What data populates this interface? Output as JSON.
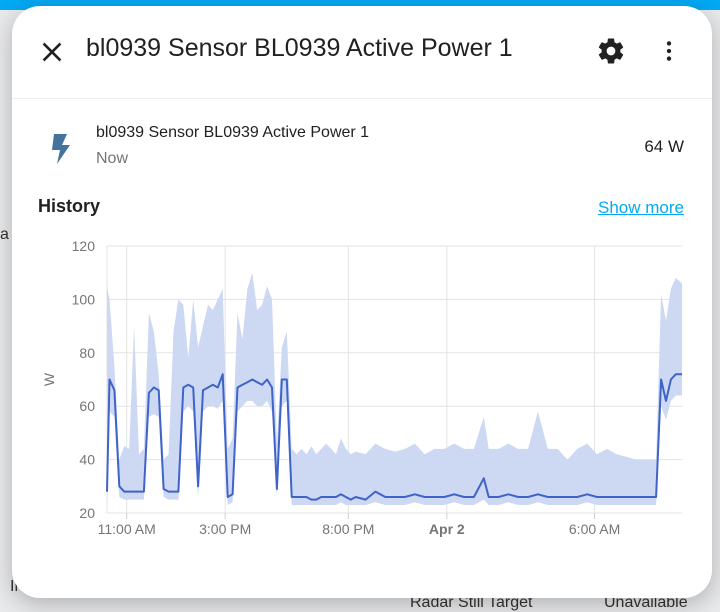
{
  "background": {
    "fragments": [
      "a",
      "Ir",
      "Radar Still Target",
      "Unavailable"
    ],
    "accent_color": "#03a9f4"
  },
  "dialog": {
    "title": "bl0939 Sensor BL0939 Active Power 1",
    "icons": {
      "close": "close-icon",
      "settings": "gear-icon",
      "more": "more-vert-icon"
    }
  },
  "entity": {
    "name": "bl0939 Sensor BL0939 Active Power 1",
    "time": "Now",
    "value": "64 W",
    "icon": "flash-icon",
    "icon_color": "#44739e"
  },
  "history": {
    "title": "History",
    "show_more": "Show more",
    "link_color": "#03a9f4"
  },
  "chart_data": {
    "type": "area",
    "ylabel": "W",
    "ylim": [
      20,
      120
    ],
    "yticks": [
      20,
      40,
      60,
      80,
      100,
      120
    ],
    "xlim": [
      "2023-04-01T10:12",
      "2023-04-02T09:33"
    ],
    "xticks": [
      {
        "label": "11:00 AM",
        "t": "2023-04-01T11:00"
      },
      {
        "label": "3:00 PM",
        "t": "2023-04-01T15:00"
      },
      {
        "label": "8:00 PM",
        "t": "2023-04-01T20:00"
      },
      {
        "label": "Apr 2",
        "t": "2023-04-02T00:00",
        "bold": true
      },
      {
        "label": "6:00 AM",
        "t": "2023-04-02T06:00"
      }
    ],
    "grid": true,
    "line_color": "#3f63c7",
    "band_color": "#cdd8f3",
    "series": [
      {
        "x": [
          "2023-04-01T10:12",
          "2023-04-01T10:18",
          "2023-04-01T10:30",
          "2023-04-01T10:42",
          "2023-04-01T10:54",
          "2023-04-01T11:06",
          "2023-04-01T11:18",
          "2023-04-01T11:30",
          "2023-04-01T11:42",
          "2023-04-01T11:54",
          "2023-04-01T12:06",
          "2023-04-01T12:18",
          "2023-04-01T12:30",
          "2023-04-01T12:42",
          "2023-04-01T12:54",
          "2023-04-01T13:06",
          "2023-04-01T13:18",
          "2023-04-01T13:30",
          "2023-04-01T13:42",
          "2023-04-01T13:54",
          "2023-04-01T14:06",
          "2023-04-01T14:18",
          "2023-04-01T14:30",
          "2023-04-01T14:42",
          "2023-04-01T14:54",
          "2023-04-01T15:06",
          "2023-04-01T15:18",
          "2023-04-01T15:30",
          "2023-04-01T15:42",
          "2023-04-01T15:54",
          "2023-04-01T16:06",
          "2023-04-01T16:18",
          "2023-04-01T16:30",
          "2023-04-01T16:42",
          "2023-04-01T16:54",
          "2023-04-01T17:06",
          "2023-04-01T17:18",
          "2023-04-01T17:30",
          "2023-04-01T17:42",
          "2023-04-01T17:54",
          "2023-04-01T18:06",
          "2023-04-01T18:18",
          "2023-04-01T18:30",
          "2023-04-01T18:42",
          "2023-04-01T18:54",
          "2023-04-01T19:06",
          "2023-04-01T19:18",
          "2023-04-01T19:30",
          "2023-04-01T19:42",
          "2023-04-01T19:54",
          "2023-04-01T20:06",
          "2023-04-01T20:18",
          "2023-04-01T20:42",
          "2023-04-01T21:06",
          "2023-04-01T21:30",
          "2023-04-01T21:54",
          "2023-04-01T22:18",
          "2023-04-01T22:42",
          "2023-04-01T23:06",
          "2023-04-01T23:30",
          "2023-04-01T23:54",
          "2023-04-02T00:18",
          "2023-04-02T00:42",
          "2023-04-02T01:06",
          "2023-04-02T01:30",
          "2023-04-02T01:42",
          "2023-04-02T02:06",
          "2023-04-02T02:30",
          "2023-04-02T02:54",
          "2023-04-02T03:18",
          "2023-04-02T03:42",
          "2023-04-02T04:06",
          "2023-04-02T04:30",
          "2023-04-02T04:54",
          "2023-04-02T05:18",
          "2023-04-02T05:42",
          "2023-04-02T06:06",
          "2023-04-02T06:30",
          "2023-04-02T06:54",
          "2023-04-02T07:18",
          "2023-04-02T07:42",
          "2023-04-02T08:06",
          "2023-04-02T08:18",
          "2023-04-02T08:30",
          "2023-04-02T08:42",
          "2023-04-02T08:54",
          "2023-04-02T09:06",
          "2023-04-02T09:18",
          "2023-04-02T09:33"
        ],
        "mean": [
          28,
          70,
          66,
          30,
          28,
          28,
          28,
          28,
          28,
          65,
          67,
          66,
          29,
          28,
          28,
          28,
          67,
          68,
          67,
          30,
          66,
          67,
          68,
          67,
          72,
          26,
          27,
          67,
          68,
          69,
          70,
          69,
          68,
          70,
          67,
          29,
          70,
          70,
          26,
          26,
          26,
          26,
          25,
          25,
          26,
          26,
          26,
          26,
          27,
          26,
          25,
          26,
          25,
          28,
          26,
          26,
          26,
          27,
          26,
          26,
          26,
          27,
          26,
          26,
          33,
          26,
          26,
          27,
          26,
          26,
          27,
          26,
          26,
          26,
          26,
          27,
          26,
          26,
          26,
          26,
          26,
          26,
          26,
          26,
          70,
          62,
          70,
          72,
          72
        ],
        "max": [
          105,
          100,
          75,
          40,
          45,
          44,
          90,
          42,
          44,
          95,
          88,
          72,
          40,
          42,
          88,
          100,
          98,
          78,
          100,
          82,
          90,
          98,
          96,
          100,
          104,
          44,
          48,
          95,
          85,
          104,
          110,
          96,
          98,
          105,
          100,
          46,
          82,
          88,
          44,
          42,
          44,
          42,
          45,
          42,
          44,
          46,
          44,
          42,
          48,
          44,
          42,
          43,
          42,
          46,
          44,
          43,
          44,
          46,
          42,
          44,
          44,
          46,
          44,
          44,
          56,
          44,
          44,
          46,
          44,
          44,
          58,
          44,
          44,
          40,
          44,
          46,
          42,
          44,
          42,
          41,
          40,
          40,
          40,
          40,
          102,
          92,
          104,
          108,
          106
        ],
        "min": [
          25,
          58,
          56,
          26,
          25,
          25,
          25,
          25,
          25,
          56,
          57,
          56,
          26,
          25,
          25,
          25,
          58,
          60,
          58,
          26,
          58,
          60,
          60,
          59,
          62,
          23,
          24,
          58,
          60,
          62,
          62,
          60,
          60,
          62,
          58,
          26,
          60,
          62,
          23,
          23,
          23,
          23,
          23,
          23,
          23,
          23,
          23,
          23,
          24,
          23,
          23,
          23,
          23,
          24,
          23,
          23,
          23,
          24,
          23,
          23,
          23,
          24,
          23,
          23,
          25,
          23,
          23,
          24,
          23,
          23,
          24,
          23,
          23,
          23,
          23,
          24,
          23,
          23,
          23,
          23,
          23,
          23,
          23,
          23,
          60,
          55,
          62,
          64,
          64
        ]
      }
    ]
  }
}
